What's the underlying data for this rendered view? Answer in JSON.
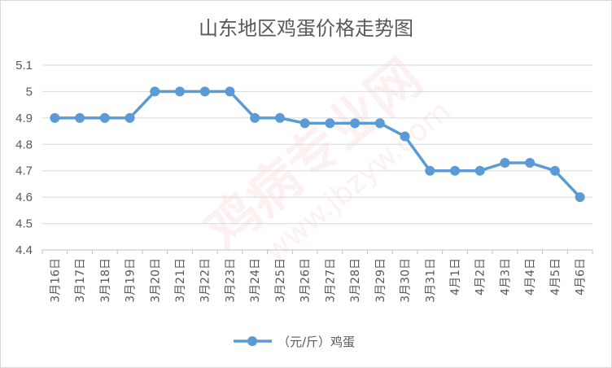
{
  "chart_data": {
    "type": "line",
    "title": "山东地区鸡蛋价格走势图",
    "categories": [
      "3月16日",
      "3月17日",
      "3月18日",
      "3月19日",
      "3月20日",
      "3月21日",
      "3月22日",
      "3月23日",
      "3月24日",
      "3月25日",
      "3月26日",
      "3月27日",
      "3月28日",
      "3月29日",
      "3月30日",
      "3月31日",
      "4月1日",
      "4月2日",
      "4月3日",
      "4月4日",
      "4月5日",
      "4月6日"
    ],
    "series": [
      {
        "name": "（元/斤）鸡蛋",
        "values": [
          4.9,
          4.9,
          4.9,
          4.9,
          5.0,
          5.0,
          5.0,
          5.0,
          4.9,
          4.9,
          4.88,
          4.88,
          4.88,
          4.88,
          4.83,
          4.7,
          4.7,
          4.7,
          4.73,
          4.73,
          4.7,
          4.6
        ]
      }
    ],
    "ylim": [
      4.4,
      5.1
    ],
    "yticks": [
      "5.1",
      "5",
      "4.9",
      "4.8",
      "4.7",
      "4.6",
      "4.5",
      "4.4"
    ],
    "grid": true,
    "legend": "bottom",
    "color": "#5b9bd5"
  },
  "watermark": {
    "brand": "鸡病专业网",
    "url": "www.jbzyw.com"
  }
}
